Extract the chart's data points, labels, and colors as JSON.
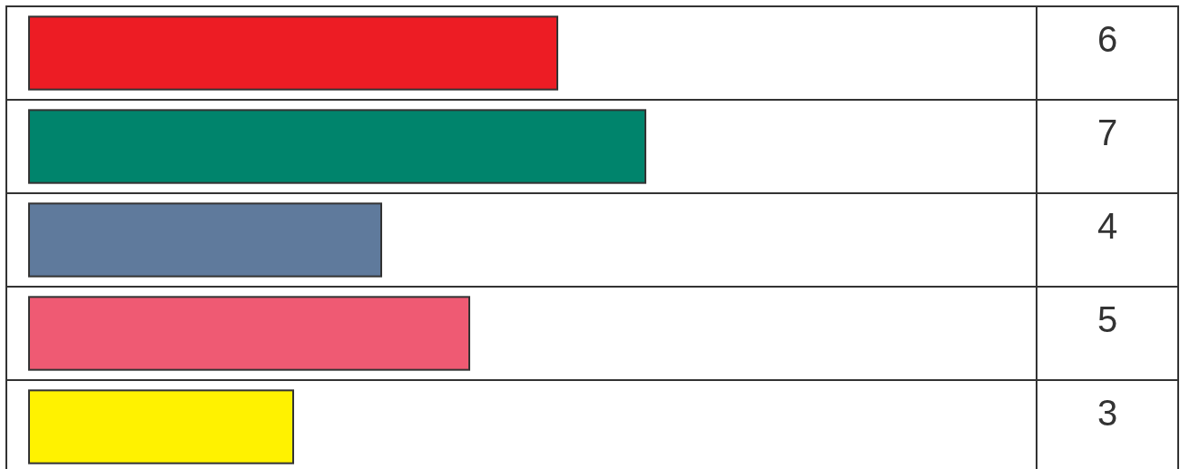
{
  "chart_data": {
    "type": "bar",
    "orientation": "horizontal",
    "categories": [
      null,
      null,
      null,
      null,
      null
    ],
    "values": [
      6,
      7,
      4,
      5,
      3
    ],
    "colors": [
      "#ed1c24",
      "#00846c",
      "#5f7a9c",
      "#ef5a73",
      "#fff200"
    ],
    "data_labels": true
  }
}
